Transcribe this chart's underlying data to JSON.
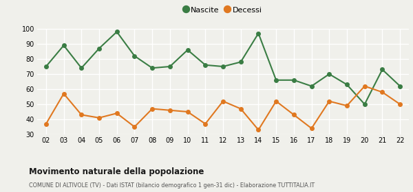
{
  "years": [
    "02",
    "03",
    "04",
    "05",
    "06",
    "07",
    "08",
    "09",
    "10",
    "11",
    "12",
    "13",
    "14",
    "15",
    "16",
    "17",
    "18",
    "19",
    "20",
    "21",
    "22"
  ],
  "nascite": [
    75,
    89,
    74,
    87,
    98,
    82,
    74,
    75,
    86,
    76,
    75,
    78,
    97,
    66,
    66,
    62,
    70,
    63,
    50,
    73,
    62
  ],
  "decessi": [
    37,
    57,
    43,
    41,
    44,
    35,
    47,
    46,
    45,
    37,
    52,
    47,
    33,
    52,
    43,
    34,
    52,
    49,
    62,
    58,
    50
  ],
  "nascite_color": "#3a7d44",
  "decessi_color": "#e07820",
  "bg_color": "#f0f0eb",
  "grid_color": "#ffffff",
  "ylim": [
    30,
    100
  ],
  "yticks": [
    30,
    40,
    50,
    60,
    70,
    80,
    90,
    100
  ],
  "title": "Movimento naturale della popolazione",
  "subtitle": "COMUNE DI ALTIVOLE (TV) - Dati ISTAT (bilancio demografico 1 gen-31 dic) - Elaborazione TUTTITALIA.IT",
  "legend_nascite": "Nascite",
  "legend_decessi": "Decessi",
  "marker_size": 4,
  "line_width": 1.5
}
